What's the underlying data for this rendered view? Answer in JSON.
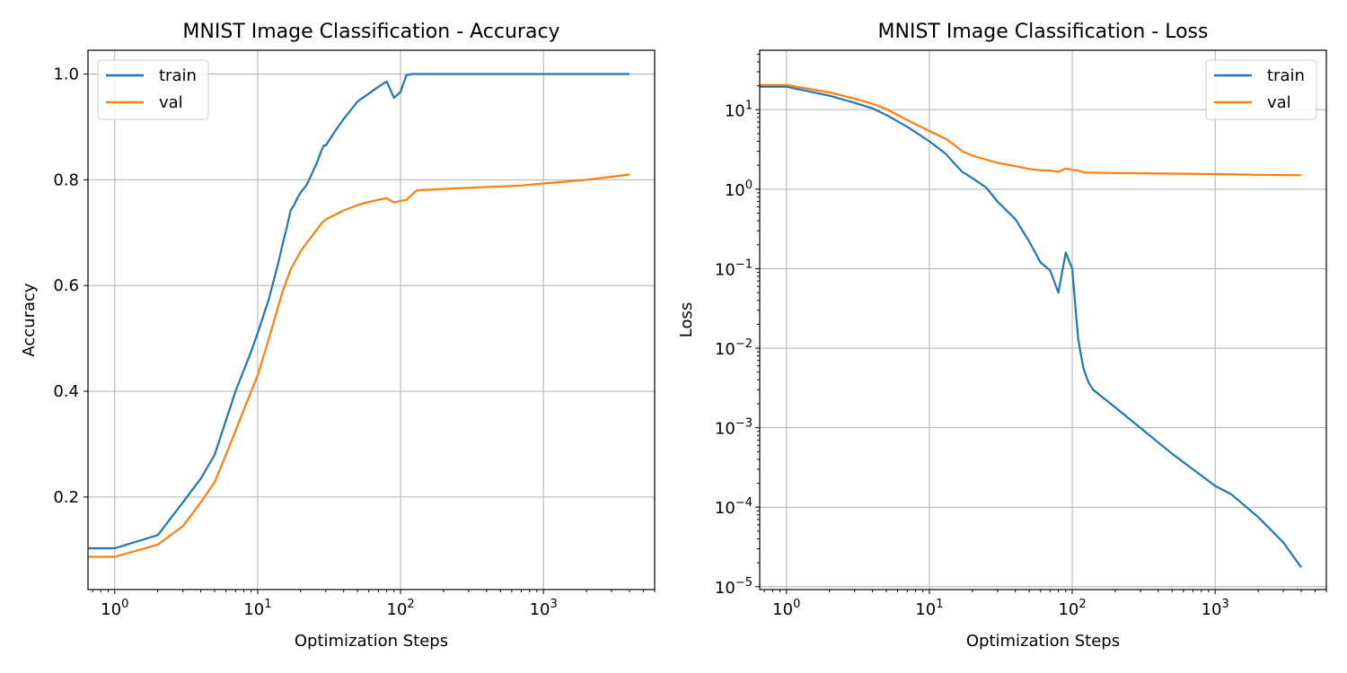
{
  "chart_data": [
    {
      "type": "line",
      "title": "MNIST Image Classification - Accuracy",
      "xlabel": "Optimization Steps",
      "ylabel": "Accuracy",
      "xscale": "log",
      "yscale": "linear",
      "xlim": [
        0.65,
        6000
      ],
      "ylim": [
        0.025,
        1.045
      ],
      "xticks": [
        {
          "v": 1,
          "base": "10",
          "exp": "0"
        },
        {
          "v": 10,
          "base": "10",
          "exp": "1"
        },
        {
          "v": 100,
          "base": "10",
          "exp": "2"
        },
        {
          "v": 1000,
          "base": "10",
          "exp": "3"
        }
      ],
      "yticks": [
        {
          "v": 0.2,
          "label": "0.2"
        },
        {
          "v": 0.4,
          "label": "0.4"
        },
        {
          "v": 0.6,
          "label": "0.6"
        },
        {
          "v": 0.8,
          "label": "0.8"
        },
        {
          "v": 1.0,
          "label": "1.0"
        }
      ],
      "grid": true,
      "legend": "top-left",
      "series": [
        {
          "name": "train",
          "color": "#1f77b4",
          "x": [
            0.65,
            1,
            2,
            3,
            4,
            5,
            6,
            7,
            8,
            9,
            10,
            12,
            14,
            15,
            16,
            17,
            18,
            19,
            20,
            22,
            24,
            26,
            28,
            29,
            30,
            35,
            40,
            50,
            60,
            70,
            80,
            90,
            100,
            110,
            120,
            200,
            500,
            1000,
            2000,
            4000
          ],
          "y": [
            0.103,
            0.103,
            0.128,
            0.19,
            0.235,
            0.28,
            0.345,
            0.4,
            0.44,
            0.475,
            0.51,
            0.575,
            0.645,
            0.68,
            0.71,
            0.742,
            0.752,
            0.766,
            0.776,
            0.79,
            0.812,
            0.832,
            0.856,
            0.865,
            0.865,
            0.893,
            0.915,
            0.948,
            0.963,
            0.976,
            0.986,
            0.955,
            0.966,
            0.998,
            1.0,
            1.0,
            1.0,
            1.0,
            1.0,
            1.0
          ]
        },
        {
          "name": "val",
          "color": "#ff7f0e",
          "x": [
            0.65,
            1,
            2,
            3,
            4,
            5,
            6,
            7,
            8,
            10,
            12,
            15,
            17,
            20,
            25,
            28,
            30,
            40,
            50,
            60,
            70,
            80,
            90,
            100,
            110,
            120,
            130,
            150,
            300,
            700,
            1000,
            2000,
            4000
          ],
          "y": [
            0.087,
            0.087,
            0.11,
            0.145,
            0.19,
            0.228,
            0.28,
            0.325,
            0.365,
            0.43,
            0.5,
            0.59,
            0.63,
            0.665,
            0.7,
            0.718,
            0.725,
            0.742,
            0.752,
            0.758,
            0.762,
            0.765,
            0.757,
            0.76,
            0.762,
            0.772,
            0.78,
            0.781,
            0.785,
            0.789,
            0.793,
            0.8,
            0.81
          ]
        }
      ]
    },
    {
      "type": "line",
      "title": "MNIST Image Classification - Loss",
      "xlabel": "Optimization Steps",
      "ylabel": "Loss",
      "xscale": "log",
      "yscale": "log",
      "xlim": [
        0.65,
        6000
      ],
      "ylim": [
        9.2e-06,
        56
      ],
      "xticks": [
        {
          "v": 1,
          "base": "10",
          "exp": "0"
        },
        {
          "v": 10,
          "base": "10",
          "exp": "1"
        },
        {
          "v": 100,
          "base": "10",
          "exp": "2"
        },
        {
          "v": 1000,
          "base": "10",
          "exp": "3"
        }
      ],
      "yticks": [
        {
          "v": 1e-05,
          "base": "10",
          "exp": "−5"
        },
        {
          "v": 0.0001,
          "base": "10",
          "exp": "−4"
        },
        {
          "v": 0.001,
          "base": "10",
          "exp": "−3"
        },
        {
          "v": 0.01,
          "base": "10",
          "exp": "−2"
        },
        {
          "v": 0.1,
          "base": "10",
          "exp": "−1"
        },
        {
          "v": 1,
          "base": "10",
          "exp": "0"
        },
        {
          "v": 10,
          "base": "10",
          "exp": "1"
        }
      ],
      "grid": true,
      "legend": "top-right",
      "series": [
        {
          "name": "train",
          "color": "#1f77b4",
          "x": [
            0.65,
            1,
            2,
            3,
            4,
            5,
            7,
            10,
            13,
            15,
            17,
            20,
            25,
            30,
            40,
            50,
            60,
            70,
            80,
            90,
            100,
            110,
            120,
            130,
            140,
            200,
            500,
            1000,
            1300,
            2000,
            3000,
            4000
          ],
          "y": [
            19.5,
            19.5,
            15,
            12.2,
            10.4,
            8.6,
            6.1,
            4.0,
            2.8,
            2.1,
            1.65,
            1.38,
            1.05,
            0.7,
            0.42,
            0.22,
            0.12,
            0.095,
            0.05,
            0.16,
            0.1,
            0.013,
            0.0055,
            0.0037,
            0.003,
            0.0018,
            0.00047,
            0.000185,
            0.000145,
            7.5e-05,
            3.6e-05,
            1.75e-05
          ]
        },
        {
          "name": "val",
          "color": "#ff7f0e",
          "x": [
            0.65,
            1,
            2,
            3,
            4,
            5,
            7,
            10,
            13,
            15,
            17,
            20,
            25,
            30,
            40,
            50,
            60,
            70,
            80,
            90,
            100,
            110,
            120,
            130,
            200,
            500,
            1000,
            2000,
            4000
          ],
          "y": [
            20.5,
            20.5,
            16.5,
            13.8,
            11.9,
            10.2,
            7.4,
            5.4,
            4.3,
            3.6,
            3.0,
            2.65,
            2.35,
            2.15,
            1.95,
            1.8,
            1.73,
            1.72,
            1.65,
            1.82,
            1.75,
            1.72,
            1.63,
            1.62,
            1.6,
            1.57,
            1.55,
            1.52,
            1.5
          ]
        }
      ]
    }
  ]
}
